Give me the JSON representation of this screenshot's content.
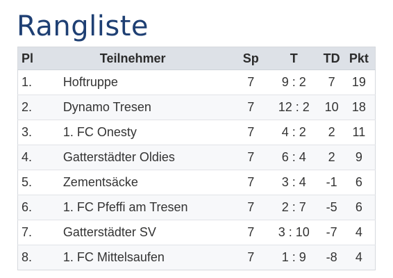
{
  "page": {
    "title": "Rangliste"
  },
  "table": {
    "headers": {
      "pl": "Pl",
      "name": "Teilnehmer",
      "sp": "Sp",
      "t": "T",
      "td": "TD",
      "pkt": "Pkt"
    },
    "rows": [
      {
        "pl": "1.",
        "name": "Hoftruppe",
        "sp": "7",
        "t": "9 : 2",
        "td": "7",
        "pkt": "19"
      },
      {
        "pl": "2.",
        "name": "Dynamo Tresen",
        "sp": "7",
        "t": "12 : 2",
        "td": "10",
        "pkt": "18"
      },
      {
        "pl": "3.",
        "name": "1. FC Onesty",
        "sp": "7",
        "t": "4 : 2",
        "td": "2",
        "pkt": "11"
      },
      {
        "pl": "4.",
        "name": "Gatterstädter Oldies",
        "sp": "7",
        "t": "6 : 4",
        "td": "2",
        "pkt": "9"
      },
      {
        "pl": "5.",
        "name": "Zementsäcke",
        "sp": "7",
        "t": "3 : 4",
        "td": "-1",
        "pkt": "6"
      },
      {
        "pl": "6.",
        "name": "1. FC Pfeffi am Tresen",
        "sp": "7",
        "t": "2 : 7",
        "td": "-5",
        "pkt": "6"
      },
      {
        "pl": "7.",
        "name": "Gatterstädter SV",
        "sp": "7",
        "t": "3 : 10",
        "td": "-7",
        "pkt": "4"
      },
      {
        "pl": "8.",
        "name": "1. FC Mittelsaufen",
        "sp": "7",
        "t": "1 : 9",
        "td": "-8",
        "pkt": "4"
      }
    ]
  }
}
